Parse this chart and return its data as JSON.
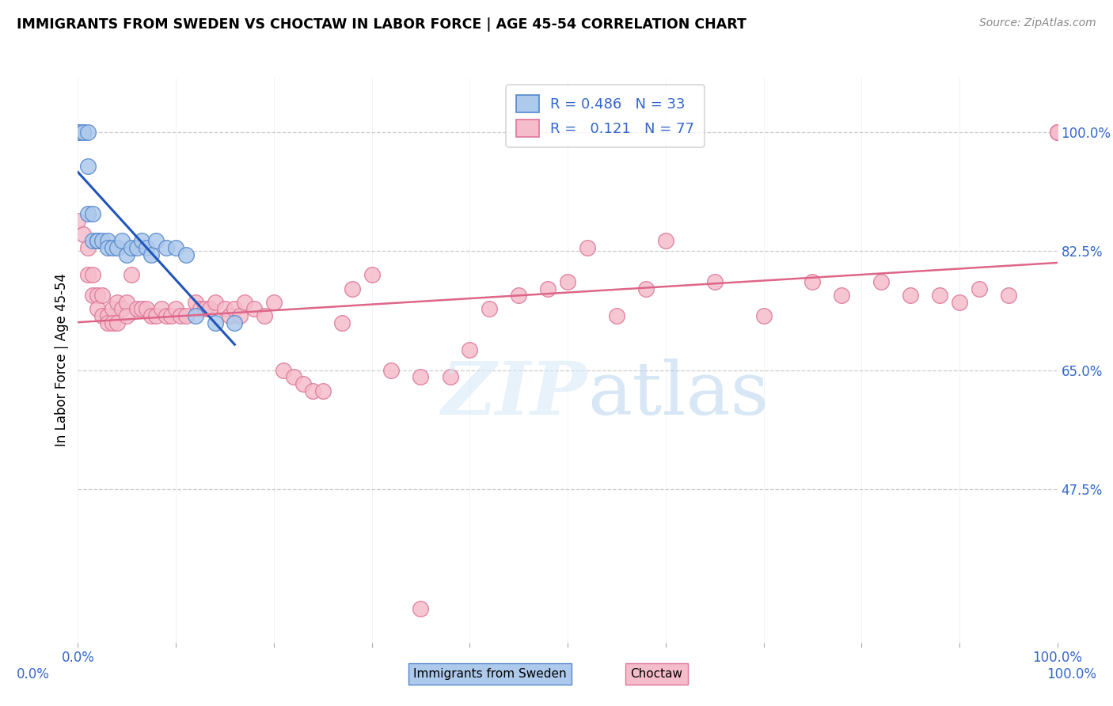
{
  "title": "IMMIGRANTS FROM SWEDEN VS CHOCTAW IN LABOR FORCE | AGE 45-54 CORRELATION CHART",
  "source": "Source: ZipAtlas.com",
  "ylabel": "In Labor Force | Age 45-54",
  "xlim": [
    0.0,
    1.0
  ],
  "ylim": [
    0.25,
    1.08
  ],
  "ytick_positions": [
    0.475,
    0.65,
    0.825,
    1.0
  ],
  "ytick_labels": [
    "47.5%",
    "65.0%",
    "82.5%",
    "100.0%"
  ],
  "xtick_positions": [
    0.0,
    0.1,
    0.2,
    0.3,
    0.4,
    0.5,
    0.6,
    0.7,
    0.8,
    0.9,
    1.0
  ],
  "xtick_labels_show": [
    "0.0%",
    "",
    "",
    "",
    "",
    "",
    "",
    "",
    "",
    "",
    "100.0%"
  ],
  "grid_color": "#cccccc",
  "sweden_color": "#adc9eb",
  "choctaw_color": "#f5bccb",
  "sweden_edge_color": "#5588cc",
  "choctaw_edge_color": "#dd7799",
  "trendline_sweden_color": "#2255bb",
  "trendline_choctaw_color": "#dd6688",
  "legend_R_sweden": "0.486",
  "legend_N_sweden": "33",
  "legend_R_choctaw": "0.121",
  "legend_N_choctaw": "77",
  "sweden_x": [
    0.0,
    0.0,
    0.0,
    0.0,
    0.0,
    0.005,
    0.005,
    0.01,
    0.01,
    0.01,
    0.015,
    0.015,
    0.02,
    0.02,
    0.025,
    0.03,
    0.03,
    0.035,
    0.04,
    0.045,
    0.05,
    0.055,
    0.06,
    0.065,
    0.07,
    0.075,
    0.08,
    0.09,
    0.1,
    0.11,
    0.12,
    0.14,
    0.16
  ],
  "sweden_y": [
    1.0,
    1.0,
    1.0,
    1.0,
    1.0,
    1.0,
    1.0,
    1.0,
    0.95,
    0.88,
    0.88,
    0.84,
    0.84,
    0.84,
    0.84,
    0.84,
    0.83,
    0.83,
    0.83,
    0.84,
    0.82,
    0.83,
    0.83,
    0.84,
    0.83,
    0.82,
    0.84,
    0.83,
    0.83,
    0.82,
    0.73,
    0.72,
    0.72
  ],
  "choctaw_x": [
    0.0,
    0.005,
    0.01,
    0.01,
    0.015,
    0.015,
    0.02,
    0.02,
    0.025,
    0.025,
    0.03,
    0.03,
    0.035,
    0.035,
    0.04,
    0.04,
    0.045,
    0.05,
    0.05,
    0.055,
    0.06,
    0.065,
    0.07,
    0.075,
    0.08,
    0.085,
    0.09,
    0.095,
    0.1,
    0.105,
    0.11,
    0.12,
    0.125,
    0.13,
    0.135,
    0.14,
    0.15,
    0.155,
    0.16,
    0.165,
    0.17,
    0.18,
    0.19,
    0.2,
    0.21,
    0.22,
    0.23,
    0.24,
    0.25,
    0.27,
    0.28,
    0.3,
    0.32,
    0.35,
    0.38,
    0.4,
    0.42,
    0.45,
    0.48,
    0.5,
    0.52,
    0.55,
    0.58,
    0.6,
    0.65,
    0.7,
    0.75,
    0.78,
    0.82,
    0.85,
    0.88,
    0.9,
    0.92,
    0.95,
    1.0,
    1.0,
    1.0
  ],
  "choctaw_y": [
    0.87,
    0.85,
    0.83,
    0.79,
    0.79,
    0.76,
    0.76,
    0.74,
    0.76,
    0.73,
    0.73,
    0.72,
    0.74,
    0.72,
    0.75,
    0.72,
    0.74,
    0.75,
    0.73,
    0.79,
    0.74,
    0.74,
    0.74,
    0.73,
    0.73,
    0.74,
    0.73,
    0.73,
    0.74,
    0.73,
    0.73,
    0.75,
    0.74,
    0.74,
    0.74,
    0.75,
    0.74,
    0.73,
    0.74,
    0.73,
    0.75,
    0.74,
    0.73,
    0.75,
    0.65,
    0.64,
    0.63,
    0.62,
    0.62,
    0.72,
    0.77,
    0.79,
    0.65,
    0.64,
    0.64,
    0.68,
    0.74,
    0.76,
    0.77,
    0.78,
    0.83,
    0.73,
    0.77,
    0.84,
    0.78,
    0.73,
    0.78,
    0.76,
    0.78,
    0.76,
    0.76,
    0.75,
    0.77,
    0.76,
    1.0,
    1.0,
    1.0
  ],
  "choctaw_lone_x": [
    0.35
  ],
  "choctaw_lone_y": [
    0.3
  ]
}
